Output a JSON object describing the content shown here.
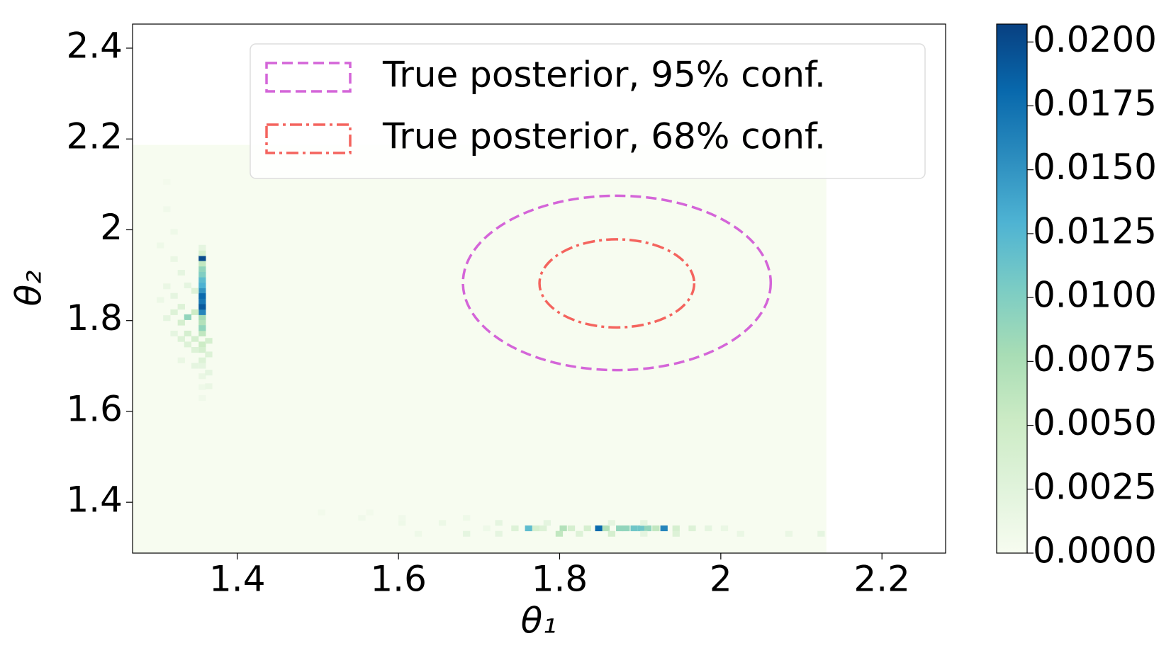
{
  "chart_data": {
    "type": "heatmap",
    "xlabel": "θ₁",
    "ylabel": "θ₂",
    "xlim": [
      1.27,
      2.279
    ],
    "ylim": [
      1.288,
      2.453
    ],
    "xticks": [
      1.4,
      1.6,
      1.8,
      2.0,
      2.2
    ],
    "yticks": [
      1.4,
      1.6,
      1.8,
      2.0,
      2.2,
      2.4
    ],
    "heatmap": {
      "extent": [
        1.27,
        2.131,
        1.288,
        2.187
      ],
      "fill_value": 0,
      "bin_size": [
        0.0086,
        0.0118
      ],
      "cells": [
        [
          1.352,
          1.79,
          0.007
        ],
        [
          1.352,
          1.802,
          0.008
        ],
        [
          1.352,
          1.813,
          0.016
        ],
        [
          1.352,
          1.825,
          0.019
        ],
        [
          1.352,
          1.837,
          0.017
        ],
        [
          1.352,
          1.849,
          0.018
        ],
        [
          1.352,
          1.861,
          0.015
        ],
        [
          1.352,
          1.872,
          0.013
        ],
        [
          1.352,
          1.884,
          0.012
        ],
        [
          1.352,
          1.896,
          0.01
        ],
        [
          1.352,
          1.908,
          0.009
        ],
        [
          1.352,
          1.92,
          0.006
        ],
        [
          1.352,
          1.932,
          0.02
        ],
        [
          1.352,
          1.943,
          0.004
        ],
        [
          1.352,
          1.955,
          0.002
        ],
        [
          1.352,
          1.766,
          0.006
        ],
        [
          1.352,
          1.742,
          0.005
        ],
        [
          1.352,
          1.73,
          0.004
        ],
        [
          1.352,
          1.707,
          0.003
        ],
        [
          1.352,
          1.695,
          0.002
        ],
        [
          1.352,
          1.672,
          0.0015
        ],
        [
          1.352,
          1.648,
          0.001
        ],
        [
          1.352,
          1.624,
          0.0008
        ],
        [
          1.352,
          1.778,
          0.009
        ],
        [
          1.343,
          1.813,
          0.005
        ],
        [
          1.343,
          1.754,
          0.004
        ],
        [
          1.343,
          1.73,
          0.003
        ],
        [
          1.343,
          1.695,
          0.002
        ],
        [
          1.343,
          1.86,
          0.003
        ],
        [
          1.334,
          1.802,
          0.009
        ],
        [
          1.334,
          1.766,
          0.004
        ],
        [
          1.334,
          1.742,
          0.003
        ],
        [
          1.334,
          1.872,
          0.002
        ],
        [
          1.326,
          1.825,
          0.003
        ],
        [
          1.326,
          1.79,
          0.004
        ],
        [
          1.326,
          1.754,
          0.003
        ],
        [
          1.326,
          1.707,
          0.0015
        ],
        [
          1.326,
          1.9,
          0.002
        ],
        [
          1.317,
          1.849,
          0.002
        ],
        [
          1.317,
          1.813,
          0.003
        ],
        [
          1.317,
          1.766,
          0.002
        ],
        [
          1.317,
          1.93,
          0.0015
        ],
        [
          1.317,
          1.99,
          0.001
        ],
        [
          1.36,
          1.75,
          0.004
        ],
        [
          1.36,
          1.72,
          0.003
        ],
        [
          1.36,
          1.68,
          0.002
        ],
        [
          1.36,
          1.65,
          0.0015
        ],
        [
          1.308,
          1.87,
          0.0015
        ],
        [
          1.308,
          1.8,
          0.002
        ],
        [
          1.308,
          2.04,
          0.0008
        ],
        [
          1.308,
          2.1,
          0.0005
        ],
        [
          1.3,
          1.96,
          0.001
        ],
        [
          1.3,
          1.84,
          0.0012
        ],
        [
          1.705,
          1.337,
          0.001
        ],
        [
          1.74,
          1.337,
          0.003
        ],
        [
          1.757,
          1.337,
          0.012
        ],
        [
          1.766,
          1.337,
          0.004
        ],
        [
          1.775,
          1.337,
          0.003
        ],
        [
          1.8,
          1.337,
          0.007
        ],
        [
          1.81,
          1.337,
          0.004
        ],
        [
          1.83,
          1.337,
          0.004
        ],
        [
          1.844,
          1.337,
          0.018
        ],
        [
          1.853,
          1.337,
          0.007
        ],
        [
          1.87,
          1.337,
          0.009
        ],
        [
          1.878,
          1.337,
          0.009
        ],
        [
          1.888,
          1.337,
          0.011
        ],
        [
          1.897,
          1.337,
          0.011
        ],
        [
          1.905,
          1.337,
          0.009
        ],
        [
          1.915,
          1.337,
          0.006
        ],
        [
          1.925,
          1.337,
          0.016
        ],
        [
          1.94,
          1.337,
          0.004
        ],
        [
          1.96,
          1.337,
          0.003
        ],
        [
          1.98,
          1.337,
          0.002
        ],
        [
          2.0,
          1.337,
          0.0015
        ],
        [
          1.62,
          1.325,
          0.001
        ],
        [
          1.68,
          1.325,
          0.002
        ],
        [
          1.72,
          1.325,
          0.002
        ],
        [
          1.795,
          1.325,
          0.006
        ],
        [
          1.82,
          1.325,
          0.003
        ],
        [
          1.86,
          1.325,
          0.004
        ],
        [
          1.9,
          1.325,
          0.002
        ],
        [
          1.94,
          1.325,
          0.003
        ],
        [
          2.02,
          1.325,
          0.0015
        ],
        [
          2.08,
          1.325,
          0.0015
        ],
        [
          2.12,
          1.325,
          0.002
        ],
        [
          1.6,
          1.349,
          0.001
        ],
        [
          1.65,
          1.349,
          0.0012
        ],
        [
          1.72,
          1.349,
          0.002
        ],
        [
          1.78,
          1.349,
          0.002
        ],
        [
          1.86,
          1.349,
          0.002
        ],
        [
          1.9,
          1.349,
          0.002
        ],
        [
          1.55,
          1.36,
          0.0008
        ],
        [
          1.6,
          1.36,
          0.0008
        ],
        [
          1.68,
          1.36,
          0.001
        ],
        [
          1.5,
          1.372,
          0.0006
        ],
        [
          1.56,
          1.372,
          0.0006
        ]
      ]
    },
    "colormap": [
      "#f7fcf0",
      "#e0f3db",
      "#ccebc5",
      "#a8ddb5",
      "#7bccc4",
      "#4eb3d3",
      "#2b8cbe",
      "#0868ac",
      "#084081"
    ],
    "clim": [
      0,
      0.0207
    ],
    "cticks": [
      {
        "value": 0,
        "label": "0.0000"
      },
      {
        "value": 0.0025,
        "label": "0.0025"
      },
      {
        "value": 0.005,
        "label": "0.0050"
      },
      {
        "value": 0.0075,
        "label": "0.0075"
      },
      {
        "value": 0.01,
        "label": "0.0100"
      },
      {
        "value": 0.0125,
        "label": "0.0125"
      },
      {
        "value": 0.015,
        "label": "0.0150"
      },
      {
        "value": 0.0175,
        "label": "0.0175"
      },
      {
        "value": 0.02,
        "label": "0.0200"
      }
    ],
    "contours": [
      {
        "name": "True posterior, 95% conf.",
        "color": "#d465d8",
        "linestyle": "dashed",
        "center": [
          1.871,
          1.883
        ],
        "radii": [
          0.191,
          0.192
        ]
      },
      {
        "name": "True posterior, 68% conf.",
        "color": "#f4645e",
        "linestyle": "dashdot",
        "center": [
          1.871,
          1.882
        ],
        "radii": [
          0.096,
          0.097
        ]
      }
    ],
    "legend": "upper right"
  }
}
